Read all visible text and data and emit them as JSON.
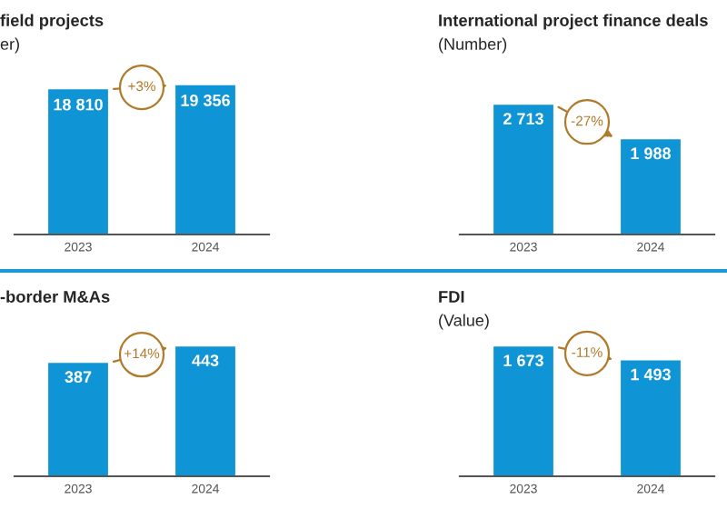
{
  "chart_data": [
    {
      "type": "bar",
      "title": "field projects",
      "subtitle": "er)",
      "categories": [
        "2023",
        "2024"
      ],
      "values": [
        18810,
        19356
      ],
      "value_labels": [
        "18 810",
        "19 356"
      ],
      "color": "#0f95d6",
      "annotations": [
        "+3%"
      ]
    },
    {
      "type": "bar",
      "title": "International project finance deals",
      "subtitle": "(Number)",
      "categories": [
        "2023",
        "2024"
      ],
      "values": [
        2713,
        1988
      ],
      "value_labels": [
        "2 713",
        "1 988"
      ],
      "color": "#0f95d6",
      "annotations": [
        "-27%"
      ]
    },
    {
      "type": "bar",
      "title": "-border M&As",
      "categories": [
        "2023",
        "2024"
      ],
      "values": [
        387,
        443
      ],
      "value_labels": [
        "387",
        "443"
      ],
      "color": "#0f95d6",
      "annotations": [
        "+14%"
      ]
    },
    {
      "type": "bar",
      "title": "FDI",
      "subtitle": "(Value)",
      "categories": [
        "2023",
        "2024"
      ],
      "values": [
        1673,
        1493
      ],
      "value_labels": [
        "1 673",
        "1 493"
      ],
      "color": "#0f95d6",
      "annotations": [
        "-11%"
      ]
    }
  ]
}
